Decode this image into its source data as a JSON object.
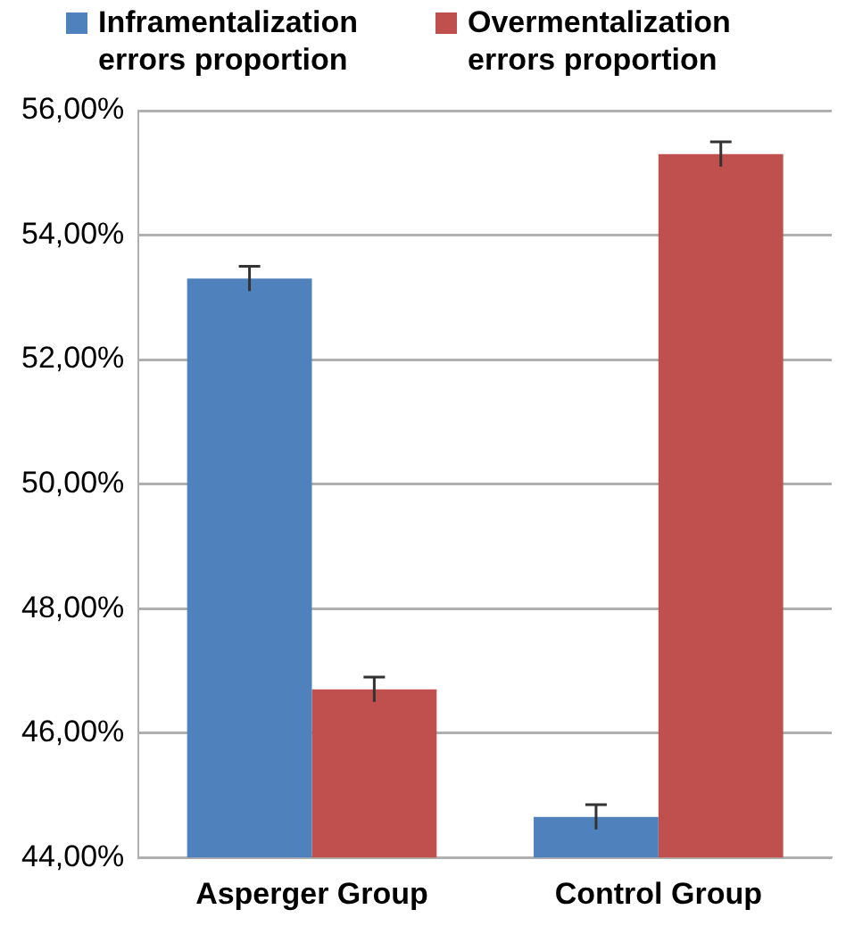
{
  "chart_data": {
    "type": "bar",
    "categories": [
      "Asperger Group",
      "Control Group"
    ],
    "series": [
      {
        "name": "Inframentalization errors proportion",
        "color": "#4f81bd",
        "values": [
          53.3,
          44.65
        ],
        "errors": [
          0.2,
          0.2
        ]
      },
      {
        "name": "Overmentalization errors proportion",
        "color": "#c0504d",
        "values": [
          46.7,
          55.3
        ],
        "errors": [
          0.2,
          0.2
        ]
      }
    ],
    "ylim": [
      44,
      56
    ],
    "yticks": [
      {
        "value": 44,
        "label": "44,00%"
      },
      {
        "value": 46,
        "label": "46,00%"
      },
      {
        "value": 48,
        "label": "48,00%"
      },
      {
        "value": 50,
        "label": "50,00%"
      },
      {
        "value": 52,
        "label": "52,00%"
      },
      {
        "value": 54,
        "label": "54,00%"
      },
      {
        "value": 56,
        "label": "56,00%"
      }
    ],
    "grid": "y",
    "legend": "top"
  }
}
